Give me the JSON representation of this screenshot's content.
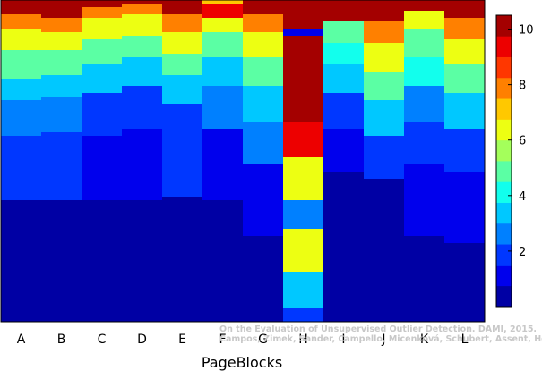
{
  "chart_data": {
    "type": "heatmap",
    "xlabel": "PageBlocks",
    "categories": [
      "A",
      "B",
      "C",
      "D",
      "E",
      "F",
      "G",
      "H",
      "I",
      "J",
      "K",
      "L"
    ],
    "colorbar": {
      "range": [
        0,
        10.5
      ],
      "ticks": [
        2,
        4,
        6,
        8,
        10
      ]
    },
    "rows_per_column": 90,
    "columns": [
      {
        "name": "A",
        "segments": [
          [
            4,
            10
          ],
          [
            4,
            8
          ],
          [
            6,
            6.5
          ],
          [
            8,
            5
          ],
          [
            6,
            3.5
          ],
          [
            10,
            2.5
          ],
          [
            18,
            1.5
          ],
          [
            34,
            0.6
          ]
        ]
      },
      {
        "name": "B",
        "segments": [
          [
            5,
            10
          ],
          [
            4,
            8
          ],
          [
            5,
            6.5
          ],
          [
            7,
            5
          ],
          [
            6,
            3.5
          ],
          [
            10,
            2.5
          ],
          [
            19,
            1.5
          ],
          [
            34,
            0.6
          ]
        ]
      },
      {
        "name": "C",
        "segments": [
          [
            2,
            10
          ],
          [
            3,
            7.5
          ],
          [
            6,
            6
          ],
          [
            7,
            4.5
          ],
          [
            8,
            3
          ],
          [
            12,
            2
          ],
          [
            18,
            1.2
          ],
          [
            34,
            0.5
          ]
        ]
      },
      {
        "name": "D",
        "segments": [
          [
            1,
            10
          ],
          [
            3,
            8
          ],
          [
            6,
            6
          ],
          [
            6,
            4.5
          ],
          [
            8,
            3
          ],
          [
            12,
            1.8
          ],
          [
            20,
            1.1
          ],
          [
            34,
            0.5
          ]
        ]
      },
      {
        "name": "E",
        "segments": [
          [
            4,
            10
          ],
          [
            5,
            7.5
          ],
          [
            6,
            6
          ],
          [
            6,
            4.5
          ],
          [
            8,
            3.2
          ],
          [
            10,
            2.2
          ],
          [
            16,
            1.5
          ],
          [
            35,
            0.6
          ]
        ]
      },
      {
        "name": "F",
        "segments": [
          [
            1,
            7
          ],
          [
            4,
            9
          ],
          [
            4,
            6.5
          ],
          [
            7,
            5
          ],
          [
            8,
            3.5
          ],
          [
            12,
            2.3
          ],
          [
            20,
            1.4
          ],
          [
            34,
            0.5
          ]
        ]
      },
      {
        "name": "G",
        "segments": [
          [
            4,
            10
          ],
          [
            5,
            7.5
          ],
          [
            7,
            6
          ],
          [
            8,
            4.5
          ],
          [
            10,
            3.2
          ],
          [
            12,
            2.3
          ],
          [
            20,
            1.4
          ],
          [
            24,
            0.6
          ]
        ]
      },
      {
        "name": "H",
        "segments": [
          [
            8,
            10
          ],
          [
            2,
            1.2
          ],
          [
            12,
            10
          ],
          [
            12,
            10
          ],
          [
            10,
            9.5
          ],
          [
            12,
            6.5
          ],
          [
            8,
            2.5
          ],
          [
            12,
            6
          ],
          [
            10,
            3.5
          ],
          [
            4,
            2
          ]
        ]
      },
      {
        "name": "I",
        "segments": [
          [
            6,
            10
          ],
          [
            6,
            5
          ],
          [
            6,
            4
          ],
          [
            8,
            3
          ],
          [
            10,
            2
          ],
          [
            12,
            1.2
          ],
          [
            42,
            0.6
          ]
        ]
      },
      {
        "name": "J",
        "segments": [
          [
            6,
            10
          ],
          [
            6,
            8
          ],
          [
            8,
            6.5
          ],
          [
            8,
            5
          ],
          [
            10,
            3.2
          ],
          [
            12,
            2
          ],
          [
            40,
            0.7
          ]
        ]
      },
      {
        "name": "K",
        "segments": [
          [
            3,
            10
          ],
          [
            5,
            6.5
          ],
          [
            8,
            5
          ],
          [
            8,
            4
          ],
          [
            10,
            2.8
          ],
          [
            12,
            2
          ],
          [
            20,
            1.2
          ],
          [
            24,
            0.6
          ]
        ]
      },
      {
        "name": "L",
        "segments": [
          [
            5,
            10
          ],
          [
            6,
            8
          ],
          [
            7,
            6
          ],
          [
            8,
            4.5
          ],
          [
            10,
            3
          ],
          [
            12,
            2
          ],
          [
            20,
            1.3
          ],
          [
            22,
            0.6
          ]
        ]
      }
    ]
  },
  "watermark": {
    "line1": "On the Evaluation of Unsupervised Outlier Detection. DAMI, 2015.",
    "line2": "Campos, Zimek, Sander, Campello, Micenková, Schubert, Assent, Houle"
  }
}
